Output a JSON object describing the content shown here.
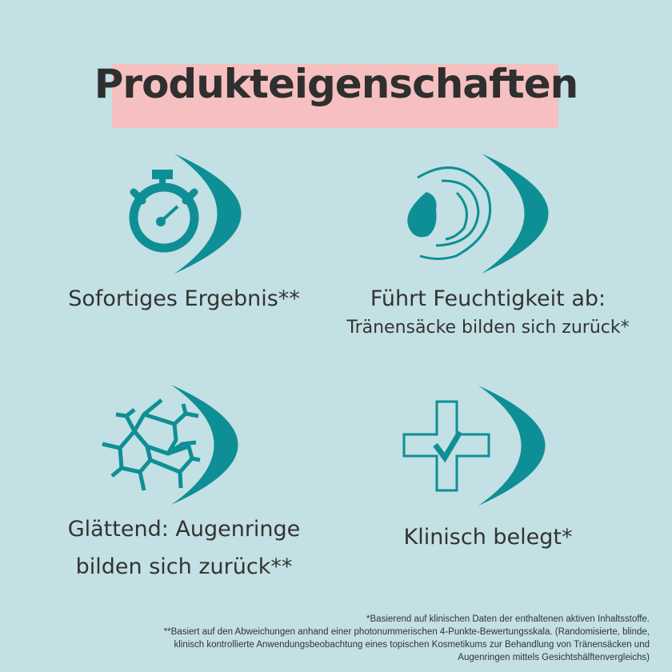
{
  "title": "Produkteigenschaften",
  "colors": {
    "background": "#c3e0e4",
    "accent": "#0e8f95",
    "title_band": "#f5c0bf",
    "text": "#333333"
  },
  "features": [
    {
      "icon": "stopwatch-icon",
      "lines": [
        "Sofortiges Ergebnis**"
      ]
    },
    {
      "icon": "water-drop-icon",
      "lines": [
        "Führt Feuchtigkeit ab:",
        "Tränensäcke bilden sich zurück*"
      ]
    },
    {
      "icon": "cell-structure-icon",
      "lines": [
        "Glättend: Augenringe",
        "bilden sich zurück**"
      ]
    },
    {
      "icon": "medical-cross-check-icon",
      "lines": [
        "Klinisch belegt*"
      ]
    }
  ],
  "footnotes": [
    "*Basierend auf klinischen Daten der enthaltenen aktiven Inhaltsstoffe.",
    "**Basiert auf den Abweichungen anhand einer photonummerischen 4-Punkte-Bewertungsskala. (Randomisierte, blinde,",
    "klinisch kontrollierte Anwendungsbeobachtung eines topischen Kosmetikums zur Behandlung von Tränensäcken und",
    "Augenringen mittels Gesichtshälftenvergleichs)"
  ]
}
